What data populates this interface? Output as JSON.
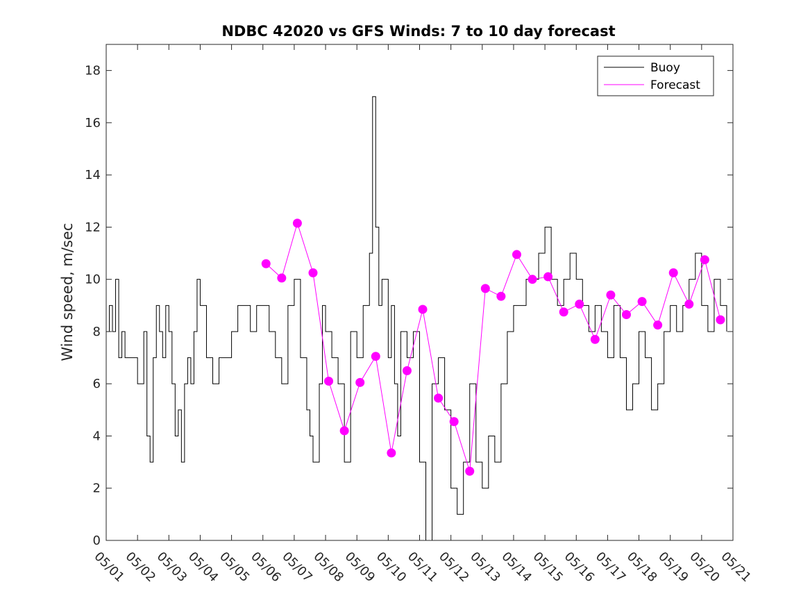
{
  "chart_data": {
    "type": "line",
    "title": "NDBC 42020 vs GFS Winds: 7 to 10 day forecast",
    "xlabel": "",
    "ylabel": "Wind speed, m/sec",
    "xlim": [
      0,
      20
    ],
    "ylim": [
      0,
      19
    ],
    "yticks": [
      0,
      2,
      4,
      6,
      8,
      10,
      12,
      14,
      16,
      18
    ],
    "xtick_labels": [
      "05/01",
      "05/02",
      "05/03",
      "05/04",
      "05/05",
      "05/06",
      "05/07",
      "05/08",
      "05/09",
      "05/10",
      "05/11",
      "05/12",
      "05/13",
      "05/14",
      "05/15",
      "05/16",
      "05/17",
      "05/18",
      "05/19",
      "05/20",
      "05/21"
    ],
    "legend": {
      "position": "top-right",
      "entries": [
        "Buoy",
        "Forecast"
      ]
    },
    "colors": {
      "buoy": "#000000",
      "forecast": "#ff00ff"
    },
    "series": [
      {
        "name": "Buoy",
        "x": [
          0,
          0.1,
          0.2,
          0.3,
          0.4,
          0.5,
          0.6,
          0.8,
          1.0,
          1.2,
          1.3,
          1.4,
          1.5,
          1.6,
          1.7,
          1.8,
          1.9,
          2.0,
          2.1,
          2.2,
          2.3,
          2.4,
          2.5,
          2.6,
          2.7,
          2.8,
          2.9,
          3.0,
          3.2,
          3.4,
          3.6,
          3.8,
          4.0,
          4.2,
          4.4,
          4.6,
          4.8,
          5.0,
          5.2,
          5.4,
          5.6,
          5.8,
          6.0,
          6.2,
          6.4,
          6.5,
          6.6,
          6.8,
          6.9,
          7.0,
          7.2,
          7.4,
          7.6,
          7.8,
          8.0,
          8.2,
          8.4,
          8.5,
          8.6,
          8.7,
          8.8,
          9.0,
          9.1,
          9.2,
          9.3,
          9.4,
          9.6,
          9.8,
          10.0,
          10.2,
          10.4,
          10.6,
          10.8,
          11.0,
          11.2,
          11.4,
          11.6,
          11.8,
          12.0,
          12.2,
          12.4,
          12.6,
          12.8,
          13.0,
          13.2,
          13.4,
          13.6,
          13.8,
          14.0,
          14.2,
          14.4,
          14.6,
          14.8,
          15.0,
          15.2,
          15.4,
          15.6,
          15.8,
          16.0,
          16.2,
          16.4,
          16.6,
          16.8,
          17.0,
          17.2,
          17.4,
          17.6,
          17.8,
          18.0,
          18.2,
          18.4,
          18.6,
          18.8,
          19.0,
          19.2,
          19.4,
          19.6,
          19.8
        ],
        "y": [
          8,
          9,
          8,
          10,
          7,
          8,
          7,
          7,
          6,
          8,
          4,
          3,
          7,
          9,
          8,
          7,
          9,
          8,
          6,
          4,
          5,
          3,
          6,
          7,
          6,
          8,
          10,
          9,
          7,
          6,
          7,
          7,
          8,
          9,
          9,
          8,
          9,
          9,
          8,
          7,
          6,
          9,
          10,
          7,
          5,
          4,
          3,
          6,
          9,
          8,
          7,
          6,
          3,
          8,
          7,
          9,
          11,
          17,
          12,
          9,
          10,
          7,
          9,
          6,
          4,
          8,
          7,
          8,
          3,
          0,
          6,
          7,
          5,
          2,
          1,
          3,
          6,
          3,
          2,
          4,
          3,
          6,
          8,
          9,
          9,
          10,
          10,
          11,
          12,
          10,
          9,
          10,
          11,
          10,
          9,
          8,
          9,
          8,
          7,
          9,
          7,
          5,
          6,
          8,
          7,
          5,
          6,
          8,
          9,
          8,
          9,
          10,
          11,
          9,
          8,
          10,
          9,
          8
        ]
      },
      {
        "name": "Forecast",
        "x": [
          5.1,
          5.6,
          6.1,
          6.6,
          7.1,
          7.6,
          8.1,
          8.6,
          9.1,
          9.6,
          10.1,
          10.6,
          11.1,
          11.6,
          12.1,
          12.6,
          13.1,
          13.6,
          14.1,
          14.6,
          15.1,
          15.6,
          16.1,
          16.6,
          17.1,
          17.6,
          18.1,
          18.6,
          19.1,
          19.6
        ],
        "y": [
          10.6,
          10.05,
          12.15,
          10.25,
          6.1,
          4.2,
          6.05,
          7.05,
          3.35,
          6.5,
          8.85,
          5.45,
          4.55,
          2.65,
          9.65,
          9.35,
          10.95,
          10.0,
          10.1,
          8.75,
          9.05,
          7.7,
          9.4,
          8.65,
          9.15,
          8.25,
          10.25,
          9.05,
          10.75,
          8.45
        ]
      }
    ]
  }
}
